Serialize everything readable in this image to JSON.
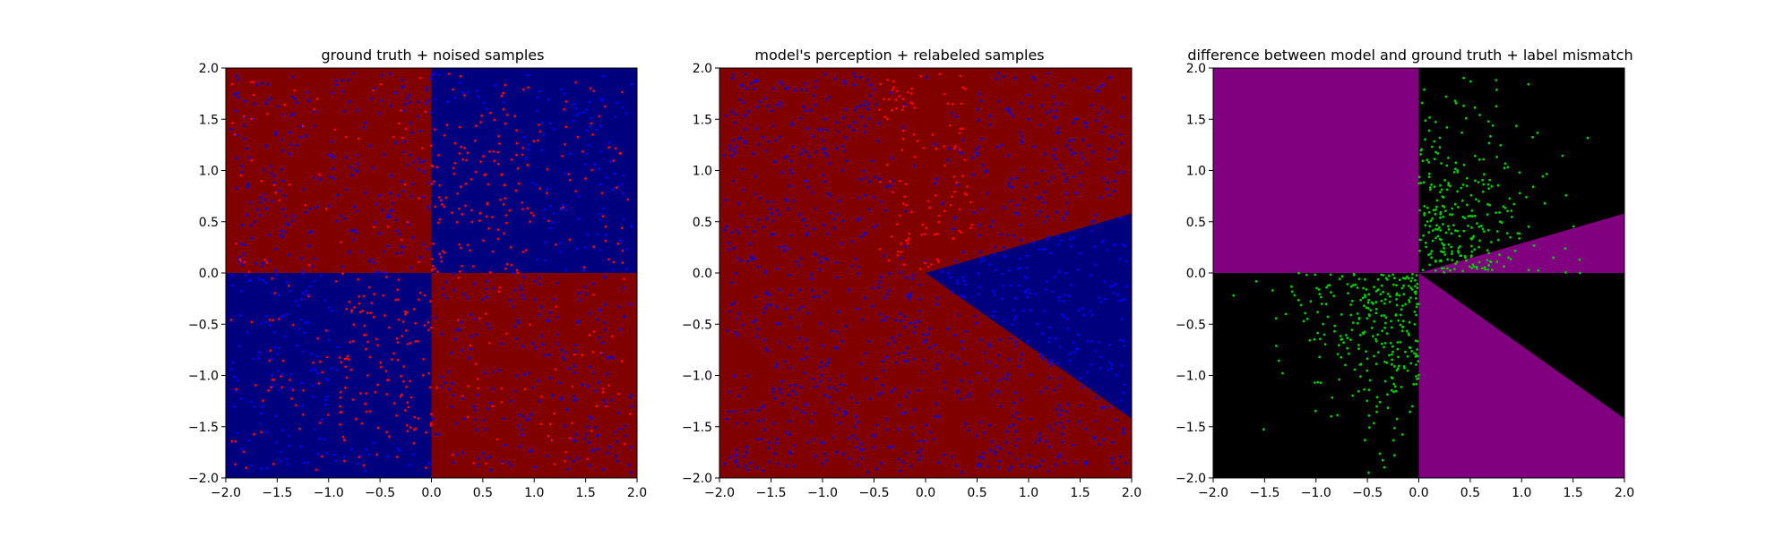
{
  "chart_data": [
    {
      "type": "heatmap",
      "title": "ground truth + noised samples",
      "xlim": [
        -2.0,
        2.0
      ],
      "ylim": [
        -2.0,
        2.0
      ],
      "xticks": [
        "−2.0",
        "−1.5",
        "−1.0",
        "−0.5",
        "0.0",
        "0.5",
        "1.0",
        "1.5",
        "2.0"
      ],
      "yticks": [
        "−2.0",
        "−1.5",
        "−1.0",
        "−0.5",
        "0.0",
        "0.5",
        "1.0",
        "1.5",
        "2.0"
      ],
      "grid": false,
      "regions": {
        "description": "quadrant map: class where x*y < 0 is red, x*y > 0 is blue",
        "colors": {
          "red": "#800000",
          "blue": "#00007f"
        }
      },
      "samples": {
        "count": 1200,
        "colors": {
          "red": "#ff0000",
          "blue": "#0000ff"
        },
        "label_noise": "points in each quadrant mostly take the opposite color of the region"
      }
    },
    {
      "type": "heatmap",
      "title": "model's perception + relabeled samples",
      "xlim": [
        -2.0,
        2.0
      ],
      "ylim": [
        -2.0,
        2.0
      ],
      "xticks": [
        "−2.0",
        "−1.5",
        "−1.0",
        "−0.5",
        "0.0",
        "0.5",
        "1.0",
        "1.5",
        "2.0"
      ],
      "yticks": [
        "−2.0",
        "−1.5",
        "−1.0",
        "−0.5",
        "0.0",
        "0.5",
        "1.0",
        "1.5",
        "2.0"
      ],
      "grid": false,
      "regions": {
        "description": "red everywhere except a blue wedge to the right of the origin",
        "blue_wedge_boundary_slopes": [
          0.29,
          -0.71
        ],
        "colors": {
          "red": "#800000",
          "blue": "#00007f"
        }
      },
      "samples": {
        "count": 1200,
        "colors": {
          "red": "#ff0000",
          "blue": "#0000ff"
        }
      }
    },
    {
      "type": "heatmap",
      "title": "difference between model and ground truth + label mismatch",
      "xlim": [
        -2.0,
        2.0
      ],
      "ylim": [
        -2.0,
        2.0
      ],
      "xticks": [
        "−2.0",
        "−1.5",
        "−1.0",
        "−0.5",
        "0.0",
        "0.5",
        "1.0",
        "1.5",
        "2.0"
      ],
      "yticks": [
        "−2.0",
        "−1.5",
        "−1.0",
        "−0.5",
        "0.0",
        "0.5",
        "1.0",
        "1.5",
        "2.0"
      ],
      "grid": false,
      "regions": {
        "description": "purple where model agrees with ground truth, black where it differs",
        "colors": {
          "agree": "#800080",
          "disagree": "#000000"
        }
      },
      "samples": {
        "count": 600,
        "colors": {
          "mismatch": "#00cc00"
        }
      }
    }
  ]
}
